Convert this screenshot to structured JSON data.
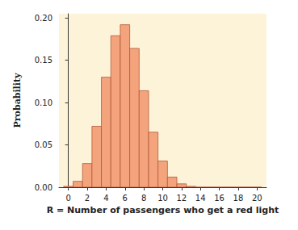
{
  "chart_data": {
    "type": "histogram",
    "xlabel": "R = Number of passengers who get a red light",
    "ylabel": "Probability",
    "bins": [
      -0.5,
      0.5,
      1.5,
      2.5,
      3.5,
      4.5,
      5.5,
      6.5,
      7.5,
      8.5,
      9.5,
      10.5,
      11.5,
      12.5,
      13.5,
      14.5,
      15.5,
      16.5,
      17.5,
      18.5,
      19.5,
      20.5
    ],
    "values": [
      0.001,
      0.007,
      0.028,
      0.072,
      0.13,
      0.179,
      0.192,
      0.164,
      0.114,
      0.065,
      0.031,
      0.012,
      0.004,
      0.001,
      0,
      0,
      0,
      0,
      0,
      0,
      0
    ],
    "color": "#f4a47c",
    "xlim": [
      -1,
      21
    ],
    "xticks": [
      0,
      2,
      4,
      6,
      8,
      10,
      12,
      14,
      16,
      18,
      20
    ],
    "ylim": [
      0,
      0.205
    ],
    "yticks": [
      {
        "value": 0,
        "label": "0.00"
      },
      0.05,
      {
        "value": 0.1,
        "label": "0.10"
      },
      0.15,
      {
        "value": 0.2,
        "label": "0.20"
      }
    ],
    "grid": false
  }
}
